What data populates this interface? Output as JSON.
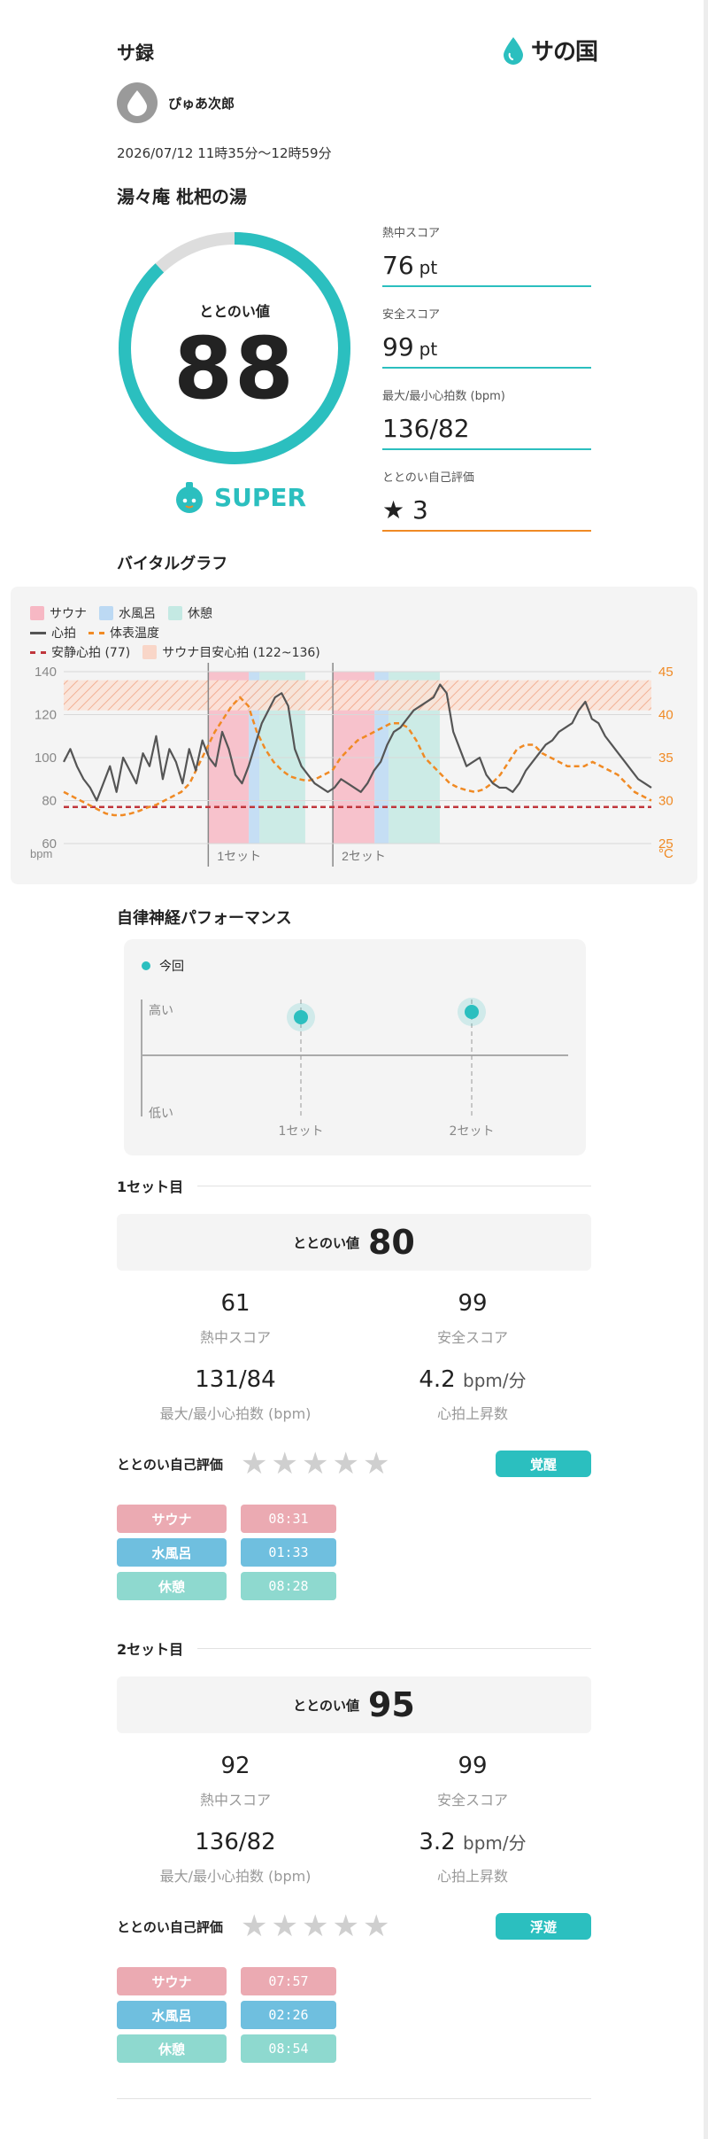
{
  "header": {
    "title": "サ録",
    "logo_text": "サの国"
  },
  "user": {
    "name": "ぴゅあ次郎"
  },
  "session": {
    "datetime": "2026/07/12 11時35分〜12時59分",
    "place": "湯々庵 枇杷の湯"
  },
  "summary": {
    "ring_label": "ととのい値",
    "ring_value": "88",
    "ring_fraction": 0.88,
    "rank": "SUPER",
    "metrics": [
      {
        "label": "熱中スコア",
        "value": "76",
        "unit": "pt"
      },
      {
        "label": "安全スコア",
        "value": "99",
        "unit": "pt"
      },
      {
        "label": "最大/最小心拍数 (bpm)",
        "value": "136/82",
        "unit": ""
      },
      {
        "label": "ととのい自己評価",
        "value": "★ 3",
        "unit": ""
      }
    ]
  },
  "vital": {
    "title": "バイタルグラフ",
    "legend": {
      "sauna": "サウナ",
      "water": "水風呂",
      "rest": "休憩",
      "hr": "心拍",
      "temp": "体表温度",
      "resting": "安静心拍 (77)",
      "target": "サウナ目安心拍 (122~136)"
    },
    "y_left_ticks": [
      "140",
      "120",
      "100",
      "80",
      "60"
    ],
    "y_left_unit": "bpm",
    "y_right_ticks": [
      "45",
      "40",
      "35",
      "30",
      "25"
    ],
    "y_right_unit": "°C",
    "set_labels": [
      "1セット",
      "2セット"
    ],
    "colors": {
      "hr": "#555555",
      "temp": "#f08a24",
      "resting": "#c0363c"
    }
  },
  "chart_data": {
    "type": "line",
    "ylim_left": [
      60,
      140
    ],
    "ylim_right": [
      25,
      45
    ],
    "resting_hr": 77,
    "target_hr": [
      122,
      136
    ],
    "series": [
      {
        "name": "心拍",
        "values": [
          98,
          104,
          96,
          90,
          86,
          80,
          88,
          96,
          84,
          100,
          94,
          88,
          102,
          96,
          110,
          90,
          104,
          98,
          88,
          104,
          94,
          108,
          100,
          96,
          112,
          104,
          92,
          88,
          96,
          106,
          116,
          122,
          128,
          130,
          124,
          104,
          96,
          92,
          88,
          86,
          84,
          86,
          90,
          88,
          86,
          84,
          88,
          94,
          98,
          106,
          112,
          114,
          118,
          122,
          124,
          126,
          128,
          134,
          130,
          112,
          104,
          96,
          98,
          100,
          92,
          88,
          86,
          86,
          84,
          88,
          94,
          98,
          102,
          106,
          108,
          112,
          114,
          116,
          122,
          126,
          118,
          116,
          110,
          106,
          102,
          98,
          94,
          90,
          88,
          86
        ]
      },
      {
        "name": "体表温度",
        "values": [
          31,
          30.5,
          30,
          29.5,
          29,
          28.5,
          28.3,
          28.3,
          28.5,
          28.8,
          29.2,
          29.5,
          30,
          30.5,
          31,
          32,
          34,
          36,
          38,
          39.5,
          41,
          42,
          41,
          38,
          36,
          34.5,
          33.5,
          32.8,
          32.5,
          32.3,
          32.5,
          33,
          33.5,
          35,
          36,
          37,
          37.5,
          38,
          38.5,
          39,
          39,
          38.5,
          37,
          35,
          34,
          33,
          32,
          31.5,
          31.2,
          31,
          31.3,
          32,
          33,
          34.5,
          36,
          36.5,
          36.5,
          35.5,
          35,
          34.5,
          34,
          34,
          34,
          34.5,
          34,
          33.5,
          33,
          32,
          31,
          30.5,
          30
        ]
      }
    ]
  },
  "ans": {
    "title": "自律神経パフォーマンス",
    "legend": "今回",
    "high": "高い",
    "low": "低い",
    "set_labels": [
      "1セット",
      "2セット"
    ]
  },
  "sets": [
    {
      "title": "1セット目",
      "tt_label": "ととのい値",
      "tt_value": "80",
      "heat": "61",
      "heat_label": "熱中スコア",
      "safe": "99",
      "safe_label": "安全スコア",
      "hr": "131/84",
      "hr_label": "最大/最小心拍数 (bpm)",
      "rise": "4.2",
      "rise_unit": "bpm/分",
      "rise_label": "心拍上昇数",
      "eval_label": "ととのい自己評価",
      "rating": 0,
      "state": "覚醒",
      "times": [
        {
          "label": "サウナ",
          "time": "08:31"
        },
        {
          "label": "水風呂",
          "time": "01:33"
        },
        {
          "label": "休憩",
          "time": "08:28"
        }
      ]
    },
    {
      "title": "2セット目",
      "tt_label": "ととのい値",
      "tt_value": "95",
      "heat": "92",
      "heat_label": "熱中スコア",
      "safe": "99",
      "safe_label": "安全スコア",
      "hr": "136/82",
      "hr_label": "最大/最小心拍数 (bpm)",
      "rise": "3.2",
      "rise_unit": "bpm/分",
      "rise_label": "心拍上昇数",
      "eval_label": "ととのい自己評価",
      "rating": 0,
      "state": "浮遊",
      "times": [
        {
          "label": "サウナ",
          "time": "07:57"
        },
        {
          "label": "水風呂",
          "time": "02:26"
        },
        {
          "label": "休憩",
          "time": "08:54"
        }
      ]
    }
  ]
}
